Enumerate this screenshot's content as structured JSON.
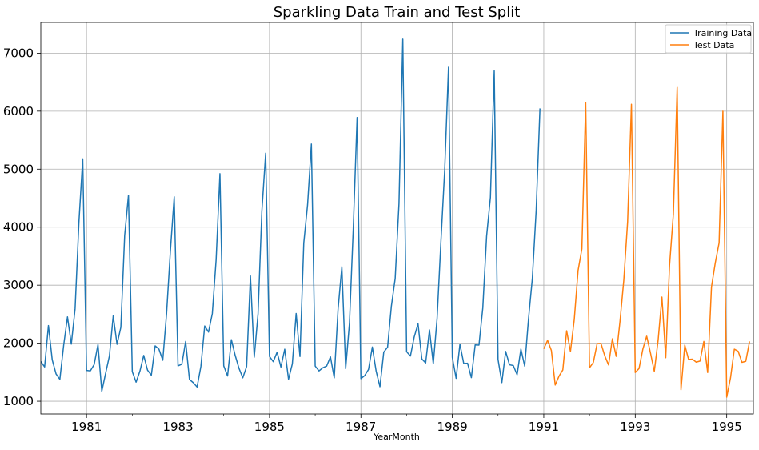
{
  "chart_data": {
    "type": "line",
    "title": "Sparkling Data Train and Test Split",
    "xlabel": "YearMonth",
    "ylabel": "",
    "xlim": [
      1980.0,
      1995.583
    ],
    "ylim": [
      780,
      7530
    ],
    "grid": true,
    "legend_position": "top-right",
    "x_ticks": [
      {
        "value": 1981,
        "label": "1981"
      },
      {
        "value": 1983,
        "label": "1983"
      },
      {
        "value": 1985,
        "label": "1985"
      },
      {
        "value": 1987,
        "label": "1987"
      },
      {
        "value": 1989,
        "label": "1989"
      },
      {
        "value": 1991,
        "label": "1991"
      },
      {
        "value": 1993,
        "label": "1993"
      },
      {
        "value": 1995,
        "label": "1995"
      }
    ],
    "x_minor_ticks": [
      1982,
      1984,
      1986,
      1988,
      1990,
      1992,
      1994
    ],
    "y_ticks": [
      {
        "value": 1000,
        "label": "1000"
      },
      {
        "value": 2000,
        "label": "2000"
      },
      {
        "value": 3000,
        "label": "3000"
      },
      {
        "value": 4000,
        "label": "4000"
      },
      {
        "value": 5000,
        "label": "5000"
      },
      {
        "value": 6000,
        "label": "6000"
      },
      {
        "value": 7000,
        "label": "7000"
      }
    ],
    "series": [
      {
        "name": "Training Data",
        "color": "#1f77b4",
        "start": "1980-01",
        "values": [
          1686,
          1591,
          2304,
          1712,
          1471,
          1377,
          1966,
          2453,
          1984,
          2596,
          4087,
          5179,
          1530,
          1523,
          1633,
          1976,
          1170,
          1480,
          1781,
          2472,
          1981,
          2273,
          3857,
          4551,
          1510,
          1329,
          1518,
          1790,
          1537,
          1449,
          1954,
          1897,
          1706,
          2514,
          3593,
          4524,
          1609,
          1638,
          2030,
          1375,
          1320,
          1245,
          1600,
          2296,
          2191,
          2511,
          3440,
          4923,
          1609,
          1435,
          2061,
          1789,
          1567,
          1404,
          1597,
          3159,
          1759,
          2504,
          4273,
          5274,
          1771,
          1682,
          1846,
          1589,
          1896,
          1379,
          1645,
          2512,
          1771,
          3727,
          4388,
          5434,
          1606,
          1523,
          1577,
          1605,
          1765,
          1403,
          2584,
          3318,
          1562,
          2349,
          3987,
          5891,
          1389,
          1442,
          1548,
          1935,
          1518,
          1250,
          1847,
          1930,
          2638,
          3114,
          4405,
          7242,
          1853,
          1779,
          2108,
          2336,
          1728,
          1661,
          2230,
          1645,
          2421,
          3740,
          4988,
          6757,
          1757,
          1394,
          1982,
          1650,
          1654,
          1406,
          1971,
          1968,
          2608,
          3845,
          4514,
          6694,
          1720,
          1321,
          1859,
          1628,
          1615,
          1457,
          1899,
          1605,
          2424,
          3116,
          4286,
          6047
        ]
      },
      {
        "name": "Test Data",
        "color": "#ff7f0e",
        "start": "1991-01",
        "values": [
          1902,
          2049,
          1874,
          1279,
          1432,
          1540,
          2214,
          1857,
          2408,
          3252,
          3627,
          6153,
          1577,
          1667,
          1993,
          1997,
          1783,
          1625,
          2076,
          1773,
          2377,
          3088,
          4096,
          6119,
          1494,
          1564,
          1898,
          2121,
          1831,
          1515,
          2048,
          2795,
          1749,
          3339,
          4227,
          6410,
          1197,
          1968,
          1720,
          1725,
          1674,
          1693,
          2031,
          1495,
          2968,
          3385,
          3729,
          5999,
          1070,
          1402,
          1897,
          1862,
          1670,
          1688,
          2031
        ]
      }
    ]
  }
}
